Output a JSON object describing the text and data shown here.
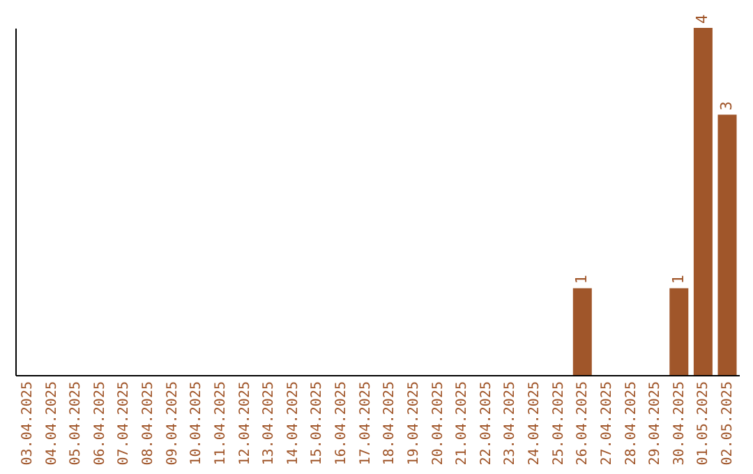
{
  "chart_data": {
    "type": "bar",
    "categories": [
      "03.04.2025",
      "04.04.2025",
      "05.04.2025",
      "06.04.2025",
      "07.04.2025",
      "08.04.2025",
      "09.04.2025",
      "10.04.2025",
      "11.04.2025",
      "12.04.2025",
      "13.04.2025",
      "14.04.2025",
      "15.04.2025",
      "16.04.2025",
      "17.04.2025",
      "18.04.2025",
      "19.04.2025",
      "20.04.2025",
      "21.04.2025",
      "22.04.2025",
      "23.04.2025",
      "24.04.2025",
      "25.04.2025",
      "26.04.2025",
      "27.04.2025",
      "28.04.2025",
      "29.04.2025",
      "30.04.2025",
      "01.05.2025",
      "02.05.2025"
    ],
    "values": [
      null,
      null,
      null,
      null,
      null,
      null,
      null,
      null,
      null,
      null,
      null,
      null,
      null,
      null,
      null,
      null,
      null,
      null,
      null,
      null,
      null,
      null,
      null,
      1,
      null,
      null,
      null,
      1,
      4,
      3
    ],
    "data_labels": true,
    "color": "#a0562a"
  }
}
